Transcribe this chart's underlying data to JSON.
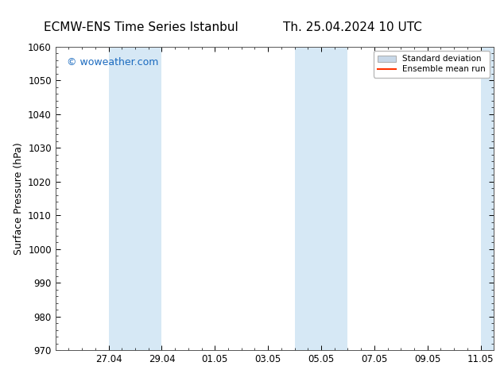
{
  "title_left": "ECMW-ENS Time Series Istanbul",
  "title_right": "Th. 25.04.2024 10 UTC",
  "ylabel": "Surface Pressure (hPa)",
  "ylim": [
    970,
    1060
  ],
  "yticks": [
    970,
    980,
    990,
    1000,
    1010,
    1020,
    1030,
    1040,
    1050,
    1060
  ],
  "xtick_labels": [
    "27.04",
    "29.04",
    "01.05",
    "03.05",
    "05.05",
    "07.05",
    "09.05",
    "11.05"
  ],
  "shaded_color": "#d6e8f5",
  "watermark": "© woweather.com",
  "watermark_color": "#1a6abf",
  "legend_std_color": "#c8d8e8",
  "legend_std_edge": "#aaaaaa",
  "legend_mean_color": "#ff3300",
  "bg_color": "#ffffff",
  "title_fontsize": 11,
  "axis_fontsize": 9,
  "tick_fontsize": 8.5,
  "watermark_fontsize": 9
}
